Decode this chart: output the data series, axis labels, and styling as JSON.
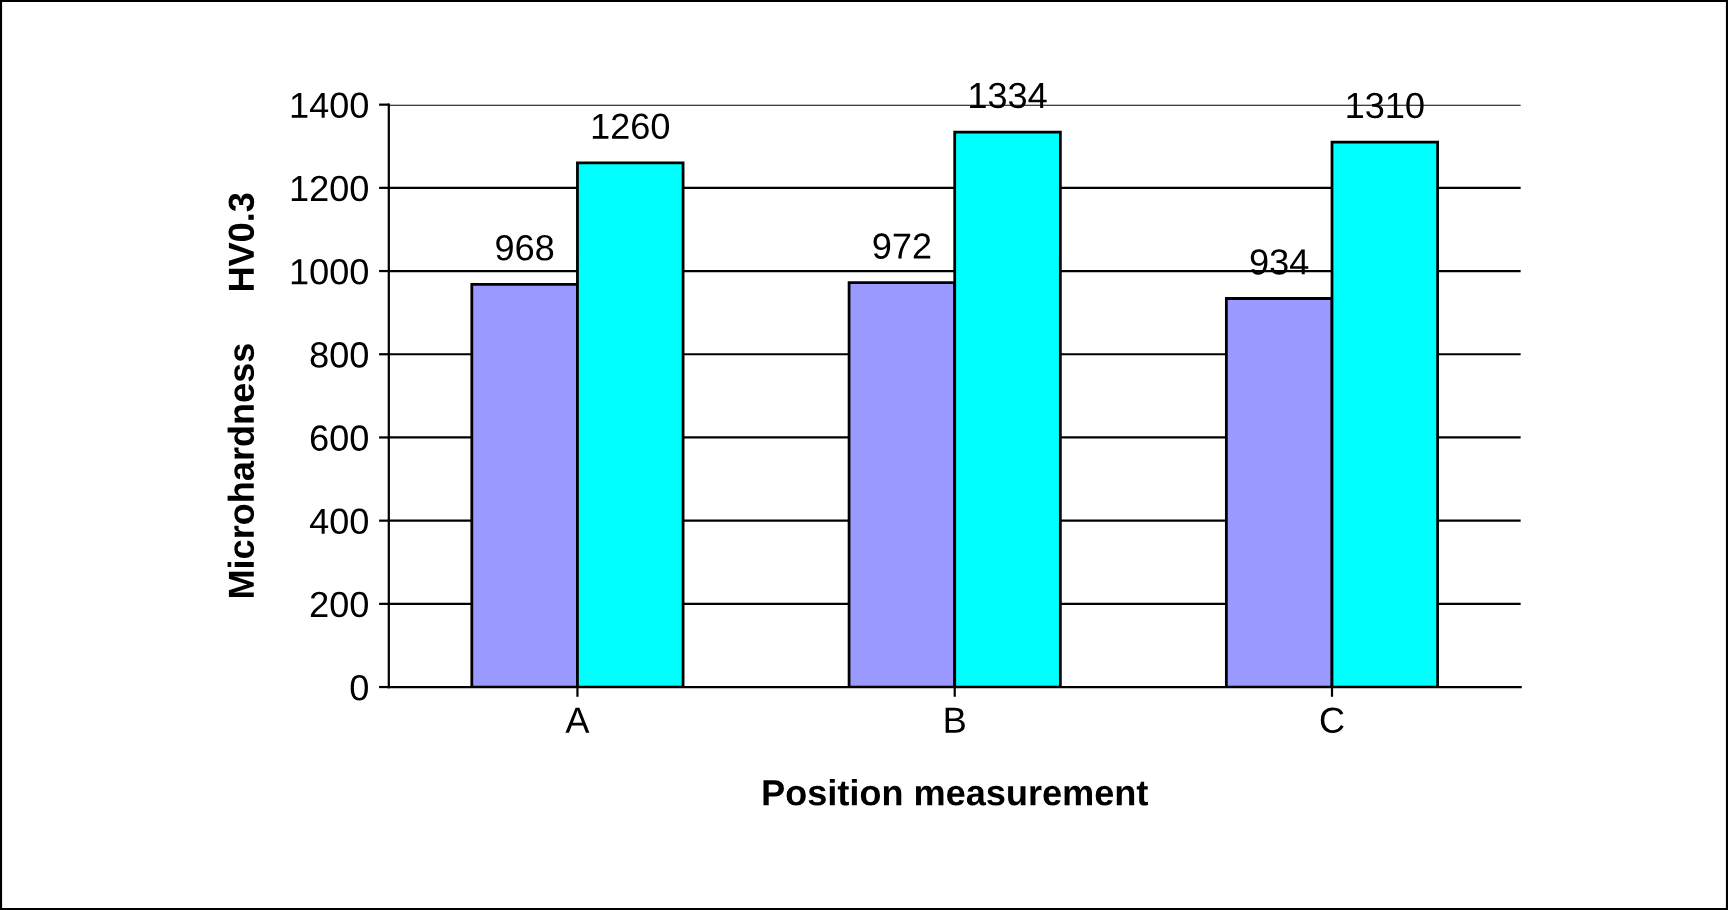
{
  "chart_data": {
    "type": "bar",
    "xlabel": "Position measurement",
    "ylabel": "Microhardness     HV0.3",
    "categories": [
      "A",
      "B",
      "C"
    ],
    "series": [
      {
        "color": "#9999ff",
        "values": [
          968,
          972,
          934
        ]
      },
      {
        "color": "#00ffff",
        "values": [
          1260,
          1334,
          1310
        ]
      }
    ],
    "ylim": [
      0,
      1400
    ],
    "yticks": [
      0,
      200,
      400,
      600,
      800,
      1000,
      1200,
      1400
    ],
    "grid": "y",
    "data_labels": true
  }
}
